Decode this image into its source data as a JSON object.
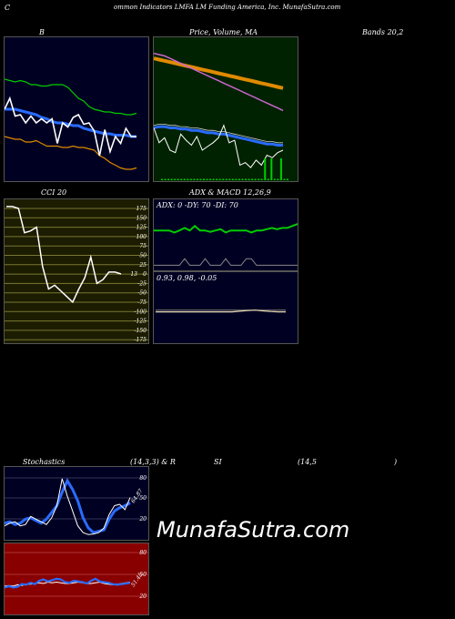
{
  "header": {
    "c_letter": "C",
    "title": "ommon  Indicators LMFA LM Funding America, Inc. MunafaSutra.com"
  },
  "labels": {
    "bollinger": "B",
    "price_ma": "Price,  Volume,  MA",
    "bands": "Bands 20,2",
    "cci": "CCI 20",
    "adx": "ADX  & MACD 12,26,9",
    "adx_values": "ADX: 0   -DY: 70   -DI: 70",
    "macd_values": "0.93,  0.98,  -0.05",
    "stoch": "Stochastics",
    "stoch_params": "(14,3,3) & R",
    "si": "SI",
    "rsi_params": "(14,5",
    "rsi_close": ")",
    "watermark": "MunafaSutra.com"
  },
  "colors": {
    "panel_navy": "#000022",
    "panel_green": "#002200",
    "panel_olive": "#1c1c00",
    "rsi_red": "#880000",
    "blue_line": "#2a6bff",
    "orange_line": "#e08a00",
    "green_line": "#00cc00",
    "magenta_line": "#cc66cc"
  },
  "chart_data": [
    {
      "type": "line",
      "name": "bollinger_bands",
      "series": [
        {
          "name": "upper",
          "values": [
            72,
            71,
            70,
            71,
            70,
            68,
            68,
            67,
            67,
            68,
            68,
            68,
            66,
            62,
            58,
            56,
            52,
            50,
            49,
            48,
            48,
            47,
            47,
            46,
            46,
            47
          ]
        },
        {
          "name": "middle",
          "values": [
            50,
            50,
            50,
            49,
            48,
            47,
            46,
            44,
            43,
            41,
            40,
            40,
            39,
            38,
            38,
            36,
            35,
            34,
            33,
            32,
            32,
            31,
            31,
            31,
            30,
            30
          ]
        },
        {
          "name": "lower",
          "values": [
            30,
            29,
            28,
            28,
            26,
            26,
            27,
            25,
            23,
            23,
            23,
            22,
            22,
            23,
            22,
            22,
            21,
            20,
            16,
            14,
            11,
            9,
            7,
            6,
            6,
            7
          ]
        },
        {
          "name": "price",
          "values": [
            50,
            58,
            45,
            46,
            40,
            45,
            40,
            43,
            40,
            43,
            25,
            40,
            37,
            44,
            46,
            39,
            40,
            34,
            16,
            35,
            19,
            30,
            25,
            36,
            30,
            30
          ]
        }
      ]
    },
    {
      "type": "line",
      "name": "price_volume_ma",
      "series": [
        {
          "name": "ma_magenta",
          "values": [
            100,
            99,
            98,
            96,
            94,
            92,
            90,
            88,
            86,
            84,
            82,
            80,
            78,
            76,
            74,
            72,
            70,
            68,
            66,
            64,
            62,
            60,
            58,
            56,
            54
          ]
        },
        {
          "name": "ma_orange",
          "values": [
            96,
            95,
            94,
            93,
            92,
            91,
            90,
            89,
            88,
            87,
            86,
            85,
            84,
            83,
            82,
            81,
            80,
            79,
            78,
            77,
            76,
            75,
            74,
            73,
            72
          ]
        },
        {
          "name": "ma_blue",
          "values": [
            40,
            41,
            41,
            40,
            40,
            39,
            39,
            38,
            38,
            37,
            36,
            36,
            35,
            35,
            34,
            33,
            32,
            31,
            30,
            29,
            28,
            27,
            27,
            26,
            26
          ]
        },
        {
          "name": "price",
          "values": [
            40,
            28,
            32,
            22,
            20,
            35,
            30,
            26,
            33,
            22,
            25,
            28,
            32,
            42,
            28,
            30,
            10,
            12,
            8,
            14,
            10,
            18,
            16,
            20,
            22
          ]
        },
        {
          "name": "volume",
          "values": [
            0,
            0,
            0,
            0,
            0,
            0,
            0,
            0,
            0,
            0,
            0,
            0,
            0,
            0,
            0,
            0,
            0,
            0,
            0,
            0,
            0,
            0,
            0,
            0,
            0,
            0,
            0,
            0,
            0,
            0,
            0,
            0,
            1,
            0,
            1,
            0,
            0,
            1,
            0,
            0
          ]
        }
      ]
    },
    {
      "type": "line",
      "name": "cci",
      "ticks": [
        "175",
        "150",
        "125",
        "100",
        "75",
        "50",
        "25",
        "0",
        "-25",
        "-50",
        "-75",
        "-100",
        "-125",
        "-150",
        "-175"
      ],
      "value_label": "13",
      "values": [
        180,
        180,
        175,
        110,
        115,
        125,
        20,
        -40,
        -30,
        -45,
        -60,
        -75,
        -40,
        -10,
        45,
        -25,
        -15,
        5,
        5,
        0
      ]
    },
    {
      "type": "line",
      "name": "adx",
      "series": [
        {
          "name": "adx_green",
          "values": [
            58,
            58,
            58,
            58,
            55,
            58,
            62,
            58,
            65,
            58,
            58,
            56,
            58,
            60,
            55,
            58,
            58,
            58,
            58,
            55,
            58,
            58,
            60,
            62,
            60,
            62,
            62,
            65,
            68
          ]
        },
        {
          "name": "di_gray",
          "values": [
            5,
            5,
            5,
            5,
            5,
            5,
            15,
            5,
            5,
            5,
            15,
            5,
            5,
            5,
            15,
            5,
            5,
            5,
            15,
            15,
            5,
            5,
            5,
            5,
            5,
            5,
            5,
            5,
            5
          ]
        }
      ]
    },
    {
      "type": "line",
      "name": "macd",
      "series": [
        {
          "name": "macd",
          "values": [
            0.93,
            0.93,
            0.93,
            0.93,
            0.93,
            0.93,
            0.93,
            0.93,
            0.93,
            0.93,
            0.93,
            0.95,
            0.97,
            0.98,
            0.96,
            0.94,
            0.93,
            0.93
          ]
        },
        {
          "name": "signal",
          "values": [
            0.98,
            0.98,
            0.98,
            0.98,
            0.98,
            0.98,
            0.98,
            0.98,
            0.98,
            0.98,
            0.98,
            0.98,
            0.98,
            0.98,
            0.98,
            0.98,
            0.98,
            0.98
          ]
        }
      ]
    },
    {
      "type": "line",
      "name": "stochastics",
      "ticks": [
        "80",
        "50",
        "20"
      ],
      "value_label": "64.87",
      "series": [
        {
          "name": "k_blue",
          "values": [
            22,
            24,
            20,
            22,
            28,
            30,
            26,
            22,
            28,
            38,
            48,
            68,
            85,
            72,
            55,
            30,
            15,
            8,
            10,
            12,
            28,
            40,
            45,
            48,
            52
          ]
        },
        {
          "name": "d_white",
          "values": [
            18,
            22,
            24,
            18,
            20,
            32,
            28,
            24,
            20,
            30,
            48,
            88,
            62,
            40,
            18,
            8,
            5,
            6,
            8,
            15,
            35,
            48,
            50,
            42,
            60
          ]
        }
      ]
    },
    {
      "type": "line",
      "name": "rsi",
      "ticks": [
        "80",
        "50",
        "20"
      ],
      "value_label": "51.45",
      "series": [
        {
          "name": "rsi_blue",
          "values": [
            40,
            42,
            40,
            41,
            45,
            44,
            47,
            45,
            50,
            52,
            49,
            51,
            53,
            52,
            48,
            47,
            50,
            49,
            48,
            46,
            50,
            53,
            49,
            48,
            47,
            45,
            44,
            45,
            46,
            47
          ]
        },
        {
          "name": "rsi_white",
          "values": [
            42,
            43,
            42,
            44,
            43,
            45,
            45,
            46,
            47,
            46,
            48,
            47,
            48,
            47,
            46,
            46,
            47,
            48,
            47,
            46,
            46,
            47,
            48,
            46,
            45,
            44,
            45,
            46,
            47,
            48
          ]
        }
      ]
    }
  ]
}
